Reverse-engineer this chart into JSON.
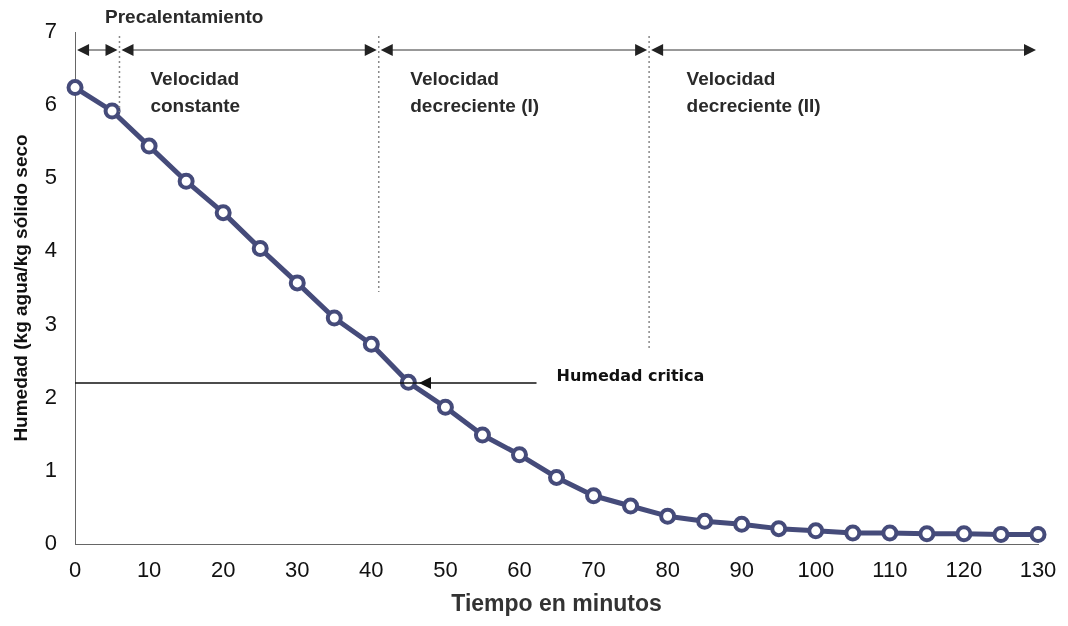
{
  "chart_data": {
    "type": "line",
    "xlabel": "Tiempo en minutos",
    "ylabel": "Humedad (kg agua/kg sólido seco",
    "x": [
      0,
      5,
      10,
      15,
      20,
      25,
      30,
      35,
      40,
      45,
      50,
      55,
      60,
      65,
      70,
      75,
      80,
      85,
      90,
      95,
      100,
      105,
      110,
      115,
      120,
      125,
      130
    ],
    "series": [
      {
        "color": "#454b7a",
        "values": [
          6.24,
          5.92,
          5.44,
          4.96,
          4.53,
          4.04,
          3.57,
          3.09,
          2.73,
          2.21,
          1.87,
          1.49,
          1.22,
          0.91,
          0.66,
          0.52,
          0.38,
          0.31,
          0.27,
          0.21,
          0.18,
          0.15,
          0.15,
          0.14,
          0.14,
          0.13,
          0.13
        ]
      }
    ],
    "xlim": [
      0,
      130
    ],
    "xticks": [
      0,
      10,
      20,
      30,
      40,
      50,
      60,
      70,
      80,
      90,
      100,
      110,
      120,
      130
    ],
    "ylim": [
      0,
      7
    ],
    "yticks": [
      0,
      1,
      2,
      3,
      4,
      5,
      6,
      7
    ],
    "ref_lines": [
      {
        "axis": "x",
        "value": 6,
        "line_style": "dotted",
        "color": "#888888"
      },
      {
        "axis": "x",
        "value": 41,
        "line_style": "dotted",
        "color": "#888888"
      },
      {
        "axis": "x",
        "value": 77.5,
        "line_style": "dotted",
        "color": "#888888"
      },
      {
        "axis": "y",
        "value": 2.2,
        "label": "Humedad critica",
        "color": "#111111"
      }
    ],
    "annotations": [
      "Precalentamiento",
      "Velocidad\nconstante",
      "Velocidad\ndecreciente (I)",
      "Velocidad\ndecreciente (II)"
    ],
    "grid": false,
    "legend": false,
    "marker": "circle",
    "line_style": "solid"
  }
}
